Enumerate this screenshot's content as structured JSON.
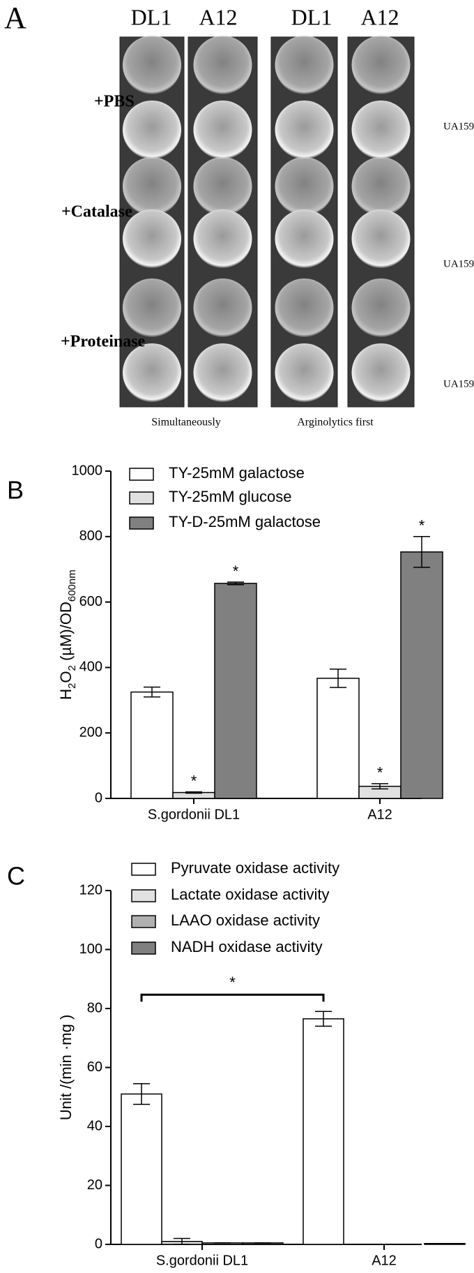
{
  "panel_a": {
    "panel_label": "A",
    "column_headers": [
      "DL1",
      "A12",
      "DL1",
      "A12"
    ],
    "row_labels": [
      "+PBS",
      "+Catalase",
      "+Proteinase"
    ],
    "side_labels": [
      "UA159",
      "UA159",
      "UA159"
    ],
    "group_labels": [
      "Simultaneously",
      "Arginolytics first"
    ]
  },
  "chart_data": [
    {
      "type": "bar",
      "panel_label": "B",
      "ylabel": [
        {
          "text": "H"
        },
        {
          "text": "2",
          "sub": true
        },
        {
          "text": "O"
        },
        {
          "text": "2",
          "sub": true
        },
        {
          "text": " (µM)/OD"
        },
        {
          "text": "600nm",
          "sub": true
        }
      ],
      "categories": [
        "S.gordonii DL1",
        "A12"
      ],
      "series": [
        {
          "name": "TY-25mM galactose",
          "color": "#ffffff",
          "values": [
            325,
            367
          ],
          "errors": [
            15,
            28
          ]
        },
        {
          "name": "TY-25mM glucose",
          "color": "#e0e0e0",
          "values": [
            18,
            37
          ],
          "errors": [
            2,
            8
          ],
          "significance": [
            "*",
            "*"
          ]
        },
        {
          "name": "TY-D-25mM galactose",
          "color": "#808080",
          "values": [
            657,
            753
          ],
          "errors": [
            4,
            47
          ],
          "significance": [
            "*",
            "*"
          ]
        }
      ],
      "ylim": [
        0,
        1000
      ],
      "yticks": [
        0,
        200,
        400,
        600,
        800,
        1000
      ]
    },
    {
      "type": "bar",
      "panel_label": "C",
      "ylabel": [
        {
          "text": "Unit /(min ·mg )"
        }
      ],
      "categories": [
        "S.gordonii DL1",
        "A12"
      ],
      "series": [
        {
          "name": "Pyruvate oxidase activity",
          "color": "#ffffff",
          "values": [
            51,
            76.5
          ],
          "errors": [
            3.5,
            2.5
          ]
        },
        {
          "name": "Lactate oxidase activity",
          "color": "#e0e0e0",
          "values": [
            1,
            0
          ],
          "errors": [
            1,
            0
          ]
        },
        {
          "name": "LAAO  oxidase activity",
          "color": "#b0b0b0",
          "values": [
            0.5,
            0
          ],
          "errors": [
            0,
            0
          ]
        },
        {
          "name": "NADH oxidase activity",
          "color": "#808080",
          "values": [
            0.5,
            0.3
          ],
          "errors": [
            0,
            0
          ]
        }
      ],
      "bracket": {
        "text": "*",
        "series": 0
      },
      "ylim": [
        0,
        120
      ],
      "yticks": [
        0,
        20,
        40,
        60,
        80,
        100,
        120
      ]
    }
  ]
}
